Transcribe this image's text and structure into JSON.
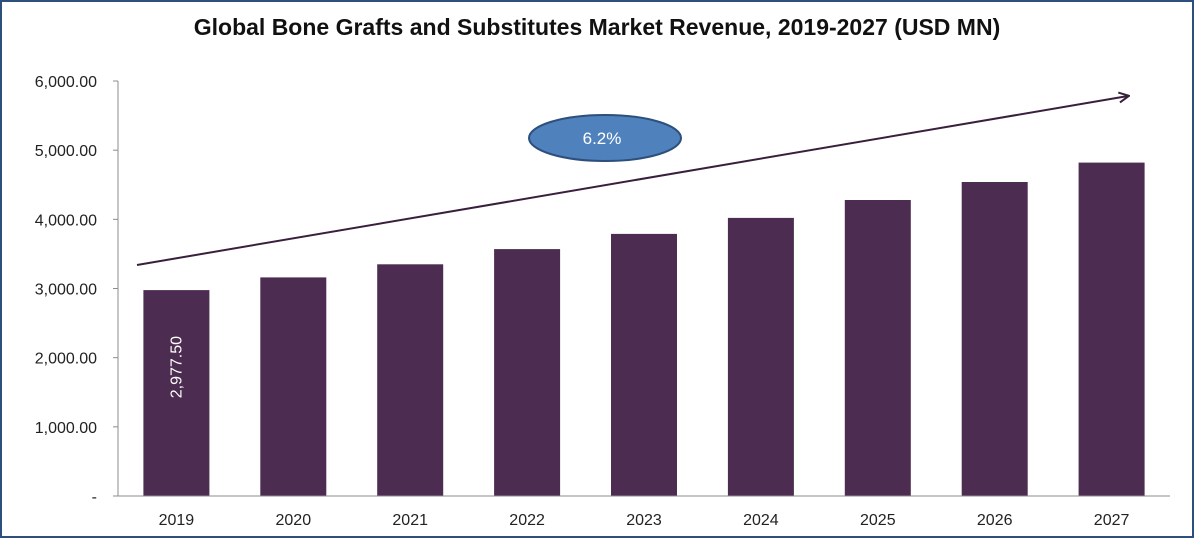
{
  "chart_data": {
    "type": "bar",
    "title": "Global Bone Grafts and Substitutes Market Revenue, 2019-2027 (USD MN)",
    "categories": [
      "2019",
      "2020",
      "2021",
      "2022",
      "2023",
      "2024",
      "2025",
      "2026",
      "2027"
    ],
    "values": [
      2977.5,
      3160,
      3350,
      3570,
      3790,
      4020,
      4280,
      4540,
      4820
    ],
    "ylim": [
      0,
      6000
    ],
    "yticks": [
      0,
      1000,
      2000,
      3000,
      4000,
      5000,
      6000
    ],
    "ytick_labels": [
      "-",
      "1,000.00",
      "2,000.00",
      "3,000.00",
      "4,000.00",
      "5,000.00",
      "6,000.00"
    ],
    "data_labels": [
      {
        "index": 0,
        "text": "2,977.50"
      }
    ],
    "annotation": {
      "text": "6.2%"
    },
    "bar_color": "#4c2c50",
    "annotation_fill": "#4f81bd",
    "annotation_stroke": "#2c4f7c",
    "arrow_color": "#3a1f3c",
    "grid": false,
    "legend": "none"
  }
}
